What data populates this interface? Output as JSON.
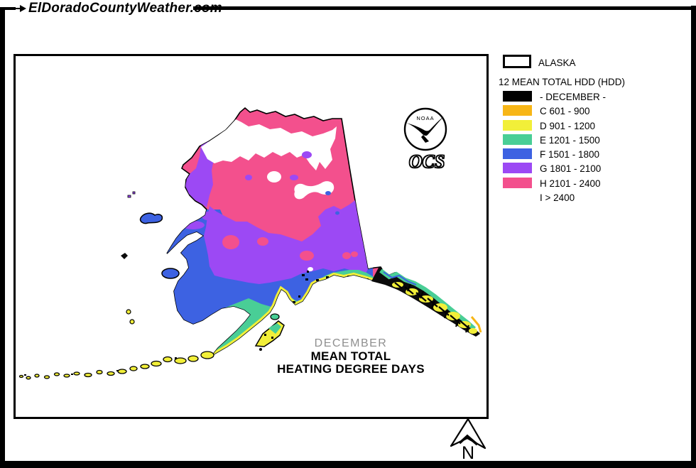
{
  "header": {
    "site_title": "ElDoradoCountyWeather.com"
  },
  "legend": {
    "region_box_label": "ALASKA",
    "title": "12 MEAN TOTAL HDD (HDD)",
    "items": [
      {
        "label": "- DECEMBER -",
        "color": "#000000"
      },
      {
        "label": "C 601 - 900",
        "color": "#F7B617"
      },
      {
        "label": "D 901 - 1200",
        "color": "#F2EF39"
      },
      {
        "label": "E 1201 - 1500",
        "color": "#49CE96"
      },
      {
        "label": "F 1501 - 1800",
        "color": "#3D62E2"
      },
      {
        "label": "G 1801 - 2100",
        "color": "#9C49F4"
      },
      {
        "label": "H 2101 - 2400",
        "color": "#F3508D"
      },
      {
        "label": "I > 2400",
        "color": null
      }
    ]
  },
  "map": {
    "title_line1": "DECEMBER",
    "title_line2": "MEAN TOTAL",
    "title_line3": "HEATING DEGREE DAYS",
    "logo": {
      "org": "NOAA",
      "sub": "OCS"
    },
    "compass": {
      "label": "N"
    }
  }
}
